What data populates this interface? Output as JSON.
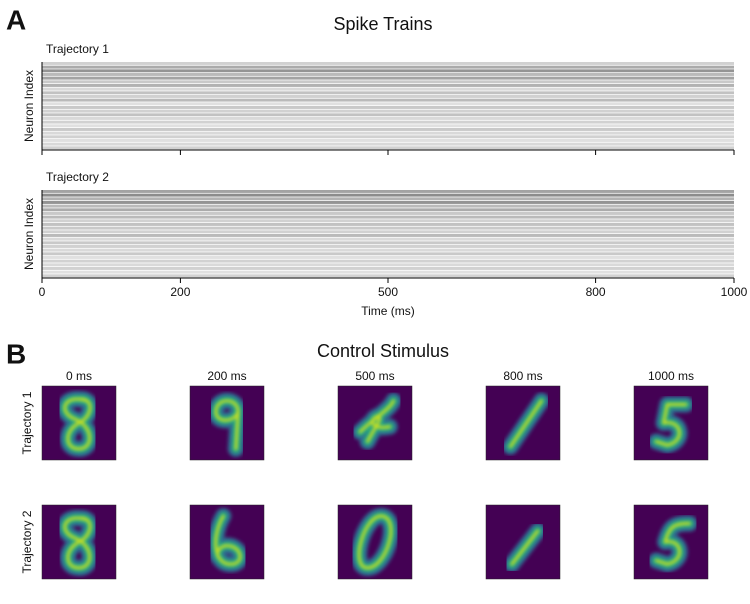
{
  "chart_data": [
    {
      "type": "raster",
      "panel_label": "A",
      "title": "Spike Trains",
      "xlabel": "Time (ms)",
      "ylabel": "Neuron Index",
      "xlim": [
        0,
        1000
      ],
      "xticks": [
        0,
        200,
        500,
        800,
        1000
      ],
      "series": [
        {
          "name": "Trajectory 1",
          "color": "#000000",
          "values": [
            0.3,
            0.55,
            0.7,
            0.45,
            0.6,
            0.35,
            0.5,
            0.25,
            0.4,
            0.3,
            0.45,
            0.2,
            0.35,
            0.3,
            0.4,
            0.25,
            0.3,
            0.2,
            0.35,
            0.25,
            0.3,
            0.2,
            0.25,
            0.3
          ]
        },
        {
          "name": "Trajectory 2",
          "color": "#000000",
          "values": [
            0.6,
            0.75,
            0.5,
            0.7,
            0.45,
            0.55,
            0.35,
            0.45,
            0.3,
            0.4,
            0.35,
            0.3,
            0.45,
            0.25,
            0.35,
            0.3,
            0.25,
            0.35,
            0.2,
            0.3,
            0.25,
            0.3,
            0.2,
            0.3
          ]
        }
      ]
    },
    {
      "type": "image",
      "panel_label": "B",
      "title": "Control Stimulus",
      "columns": [
        "0 ms",
        "200 ms",
        "500 ms",
        "800 ms",
        "1000 ms"
      ],
      "rows": [
        "Trajectory 1",
        "Trajectory 2"
      ]
    }
  ]
}
